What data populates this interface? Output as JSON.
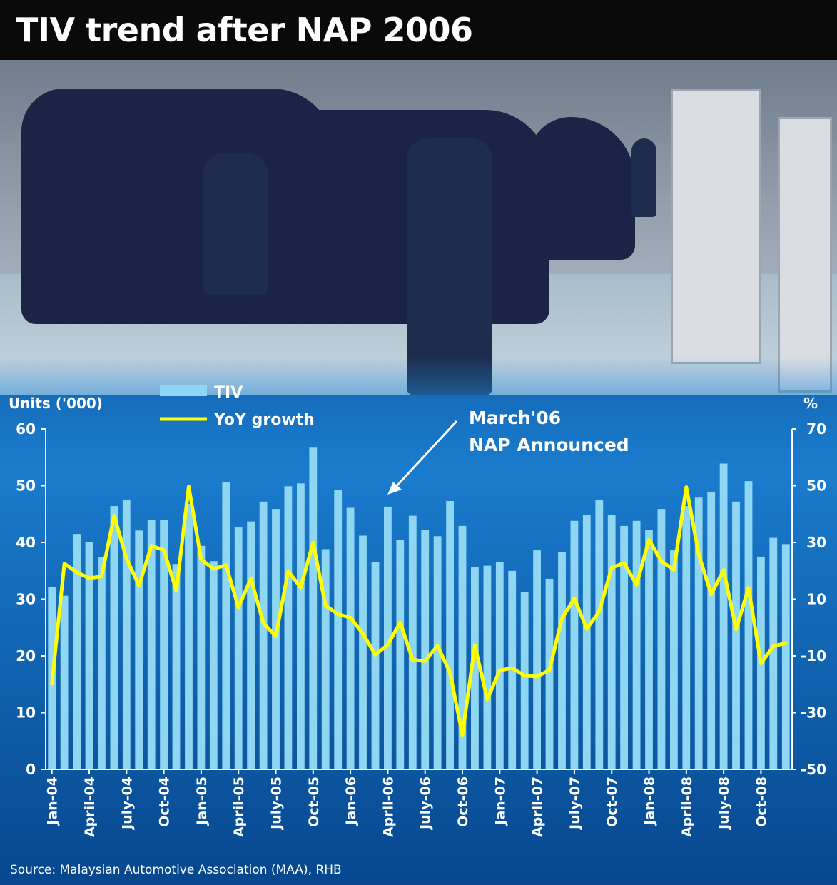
{
  "title": "TIV trend after NAP 2006",
  "source": "Source: Malaysian Automotive Association (MAA), RHB",
  "colors": {
    "bar": "#8fd6f2",
    "line": "#ffff00",
    "axis": "#ffffff",
    "background_top": "#1f86d6",
    "background_bottom": "#06478e",
    "header": "#0a0a0a"
  },
  "chart_data": {
    "type": "bar",
    "title": "TIV trend after NAP 2006",
    "ylabel": "Units ('000)",
    "y2label": "%",
    "ylim": [
      0,
      60
    ],
    "yticks": [
      0,
      10,
      20,
      30,
      40,
      50,
      60
    ],
    "y2lim": [
      -50,
      70
    ],
    "y2ticks": [
      -50,
      -30,
      -10,
      10,
      30,
      50,
      70
    ],
    "grid": false,
    "legend": {
      "position": "top-left",
      "entries": [
        "TIV",
        "YoY growth"
      ]
    },
    "categories": [
      "Jan-04",
      "Feb-04",
      "Mar-04",
      "April-04",
      "May-04",
      "Jun-04",
      "July-04",
      "Aug-04",
      "Sep-04",
      "Oct-04",
      "Nov-04",
      "Dec-04",
      "Jan-05",
      "Feb-05",
      "Mar-05",
      "April-05",
      "May-05",
      "Jun-05",
      "July-05",
      "Aug-05",
      "Sep-05",
      "Oct-05",
      "Nov-05",
      "Dec-05",
      "Jan-06",
      "Feb-06",
      "Mar-06",
      "April-06",
      "May-06",
      "Jun-06",
      "July-06",
      "Aug-06",
      "Sep-06",
      "Oct-06",
      "Nov-06",
      "Dec-06",
      "Jan-07",
      "Feb-07",
      "Mar-07",
      "April-07",
      "May-07",
      "Jun-07",
      "July-07",
      "Aug-07",
      "Sep-07",
      "Oct-07",
      "Nov-07",
      "Dec-07",
      "Jan-08",
      "Feb-08",
      "Mar-08",
      "April-08",
      "May-08",
      "Jun-08",
      "July-08",
      "Aug-08",
      "Sep-08",
      "Oct-08",
      "Nov-08",
      "Dec-08"
    ],
    "xtick_labels": [
      "Jan-04",
      "April-04",
      "July-04",
      "Oct-04",
      "Jan-05",
      "April-05",
      "July-05",
      "Oct-05",
      "Jan-06",
      "April-06",
      "July-06",
      "Oct-06",
      "Jan-07",
      "April-07",
      "July-07",
      "Oct-07",
      "Jan-08",
      "April-08",
      "July-08",
      "Oct-08"
    ],
    "series": [
      {
        "name": "TIV",
        "type": "bar",
        "axis": "left",
        "values": [
          32.1,
          30.6,
          41.5,
          40.1,
          37.4,
          46.4,
          47.5,
          42.1,
          43.9,
          43.9,
          36.2,
          46.8,
          39.4,
          36.7,
          50.6,
          42.7,
          43.7,
          47.2,
          45.9,
          49.9,
          50.4,
          56.7,
          38.8,
          49.2,
          46.1,
          41.2,
          36.5,
          46.3,
          40.5,
          44.7,
          42.2,
          41.1,
          47.3,
          42.9,
          35.6,
          35.9,
          36.6,
          35.0,
          31.2,
          38.6,
          33.6,
          38.3,
          43.8,
          44.9,
          47.5,
          44.9,
          42.9,
          43.8,
          42.2,
          45.9,
          38.6,
          46.4,
          47.9,
          48.9,
          53.9,
          47.2,
          50.8,
          37.5,
          40.8,
          39.7
        ]
      },
      {
        "name": "YoY growth",
        "type": "line",
        "axis": "right",
        "values": [
          -19.8,
          22.5,
          19.5,
          17.4,
          18.0,
          39.4,
          24.3,
          14.8,
          28.8,
          27.3,
          13.0,
          49.7,
          23.9,
          20.7,
          22.0,
          7.1,
          17.3,
          1.6,
          -3.1,
          19.9,
          14.1,
          29.9,
          7.7,
          4.7,
          3.5,
          -2.2,
          -9.6,
          -6.1,
          1.8,
          -11.4,
          -11.8,
          -6.4,
          -15.9,
          -37.8,
          -6.3,
          -25.4,
          -15.1,
          -14.3,
          -17.0,
          -17.3,
          -15.0,
          3.2,
          10.3,
          -0.5,
          5.7,
          21.1,
          22.7,
          15.1,
          30.9,
          23.3,
          20.4,
          49.5,
          25.7,
          11.7,
          20.3,
          -0.6,
          14.0,
          -12.7,
          -6.6,
          -5.5
        ]
      }
    ],
    "annotations": [
      {
        "text_lines": [
          "March'06",
          "NAP Announced"
        ],
        "points_to": "Mar-06"
      }
    ]
  }
}
